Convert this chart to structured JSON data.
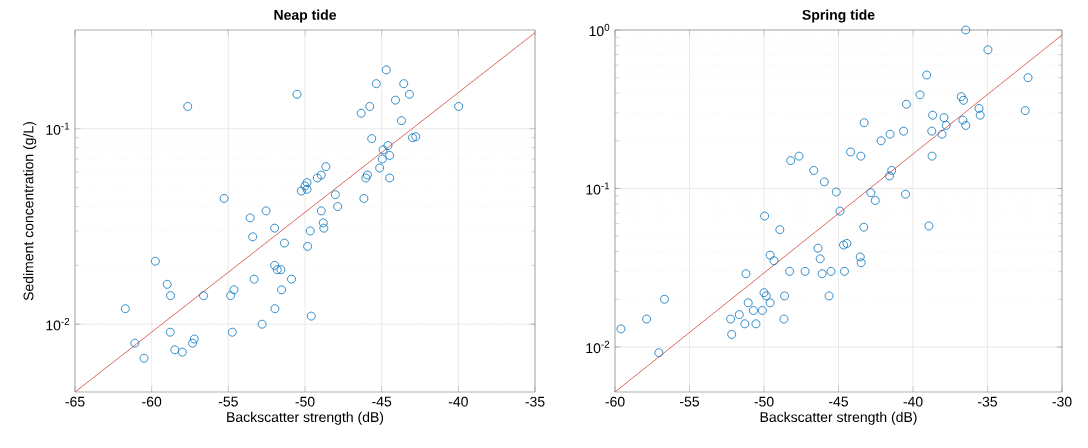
{
  "chart_data": [
    {
      "type": "scatter",
      "title": "Neap tide",
      "xlabel": "Backscatter strength (dB)",
      "ylabel": "Sediment concentration (g/L)",
      "log": "y",
      "grid": true,
      "xlim": [
        -65,
        -35
      ],
      "ylim": [
        0.0045,
        0.32
      ],
      "xticks": [
        -65,
        -60,
        -55,
        -50,
        -45,
        -40,
        -35
      ],
      "yticks": [
        {
          "value": 0.01,
          "label": "10$^{-2}$"
        },
        {
          "value": 0.1,
          "label": "10$^{-1}$"
        }
      ],
      "series": [
        {
          "marker": "circle",
          "color": "#0072bd",
          "x": [
            -57.65,
            -50.52,
            -44.7,
            -45.35,
            -43.56,
            -43.19,
            -44.1,
            -45.78,
            -46.34,
            -39.98,
            -43.71,
            -45.65,
            -42.99,
            -42.78,
            -44.59,
            -44.91,
            -44.48,
            -44.96,
            -45.13,
            -44.48,
            -48.64,
            -48.94,
            -49.2,
            -49.87,
            -50.0,
            -49.87,
            -50.24,
            -45.93,
            -46.03,
            -46.16,
            -48.02,
            -47.87,
            -48.94,
            -48.81,
            -48.77,
            -49.66,
            -49.83,
            -51.34,
            -51.98,
            -52.54,
            -53.58,
            -53.41,
            -55.28,
            -59.76,
            -51.98,
            -51.81,
            -51.57,
            -50.88,
            -53.32,
            -51.53,
            -54.63,
            -54.85,
            -56.62,
            -58.99,
            -58.77,
            -61.72,
            -51.96,
            -49.59,
            -52.8,
            -54.74,
            -58.79,
            -57.22,
            -57.33,
            -61.1,
            -58.49,
            -58.0,
            -60.5
          ],
          "values": [
            0.13,
            0.15,
            0.2,
            0.17,
            0.17,
            0.15,
            0.14,
            0.13,
            0.12,
            0.13,
            0.11,
            0.089,
            0.09,
            0.091,
            0.082,
            0.078,
            0.073,
            0.07,
            0.063,
            0.056,
            0.064,
            0.058,
            0.056,
            0.053,
            0.051,
            0.049,
            0.048,
            0.058,
            0.056,
            0.044,
            0.046,
            0.04,
            0.038,
            0.033,
            0.031,
            0.03,
            0.025,
            0.026,
            0.031,
            0.038,
            0.035,
            0.028,
            0.044,
            0.021,
            0.02,
            0.019,
            0.019,
            0.017,
            0.017,
            0.015,
            0.015,
            0.014,
            0.014,
            0.016,
            0.014,
            0.012,
            0.012,
            0.011,
            0.01,
            0.0091,
            0.0091,
            0.0084,
            0.008,
            0.008,
            0.0074,
            0.0072,
            0.0067
          ]
        },
        {
          "type": "line",
          "color": "#d9423a",
          "x": [
            -65,
            -35
          ],
          "values": [
            0.0045,
            0.31
          ]
        }
      ]
    },
    {
      "type": "scatter",
      "title": "Spring tide",
      "xlabel": "Backscatter strength (dB)",
      "log": "y",
      "grid": true,
      "xlim": [
        -60,
        -30
      ],
      "ylim": [
        0.0052,
        1
      ],
      "xticks": [
        -60,
        -55,
        -50,
        -45,
        -40,
        -35,
        -30
      ],
      "yticks": [
        {
          "value": 0.01,
          "label": "10$^{-2}$"
        },
        {
          "value": 0.1,
          "label": "10$^{-1}$"
        },
        {
          "value": 1,
          "label": "10$^{0}$"
        }
      ],
      "series": [
        {
          "marker": "circle",
          "color": "#0072bd",
          "x": [
            -36.46,
            -34.97,
            -39.08,
            -32.28,
            -39.53,
            -40.44,
            -36.76,
            -36.61,
            -35.57,
            -32.47,
            -35.49,
            -38.68,
            -37.92,
            -36.65,
            -36.46,
            -37.77,
            -43.28,
            -38.74,
            -40.63,
            -38.05,
            -41.54,
            -42.14,
            -44.19,
            -43.5,
            -38.72,
            -47.65,
            -48.21,
            -46.66,
            -41.43,
            -41.58,
            -45.95,
            -45.15,
            -42.83,
            -40.5,
            -42.53,
            -44.9,
            -49.96,
            -38.93,
            -43.3,
            -48.94,
            -44.44,
            -44.66,
            -46.38,
            -46.23,
            -43.54,
            -43.48,
            -49.59,
            -49.33,
            -48.28,
            -47.24,
            -45.5,
            -44.6,
            -46.1,
            -51.21,
            -45.63,
            -48.62,
            -50.0,
            -49.85,
            -56.68,
            -51.06,
            -49.59,
            -50.71,
            -50.11,
            -51.66,
            -52.24,
            -48.66,
            -57.88,
            -51.29,
            -50.54,
            -59.6,
            -52.17,
            -57.06
          ],
          "values": [
            1.0,
            0.75,
            0.52,
            0.5,
            0.39,
            0.34,
            0.38,
            0.36,
            0.32,
            0.31,
            0.29,
            0.29,
            0.28,
            0.27,
            0.25,
            0.25,
            0.26,
            0.23,
            0.23,
            0.22,
            0.22,
            0.2,
            0.17,
            0.16,
            0.16,
            0.16,
            0.15,
            0.13,
            0.13,
            0.12,
            0.11,
            0.095,
            0.094,
            0.092,
            0.084,
            0.072,
            0.067,
            0.058,
            0.057,
            0.055,
            0.045,
            0.044,
            0.042,
            0.036,
            0.037,
            0.034,
            0.038,
            0.035,
            0.03,
            0.03,
            0.03,
            0.03,
            0.029,
            0.029,
            0.021,
            0.021,
            0.022,
            0.021,
            0.02,
            0.019,
            0.019,
            0.017,
            0.017,
            0.016,
            0.015,
            0.015,
            0.015,
            0.014,
            0.014,
            0.013,
            0.012,
            0.0092
          ]
        },
        {
          "type": "line",
          "color": "#d9423a",
          "x": [
            -60,
            -30
          ],
          "values": [
            0.0052,
            0.93
          ]
        }
      ]
    }
  ]
}
